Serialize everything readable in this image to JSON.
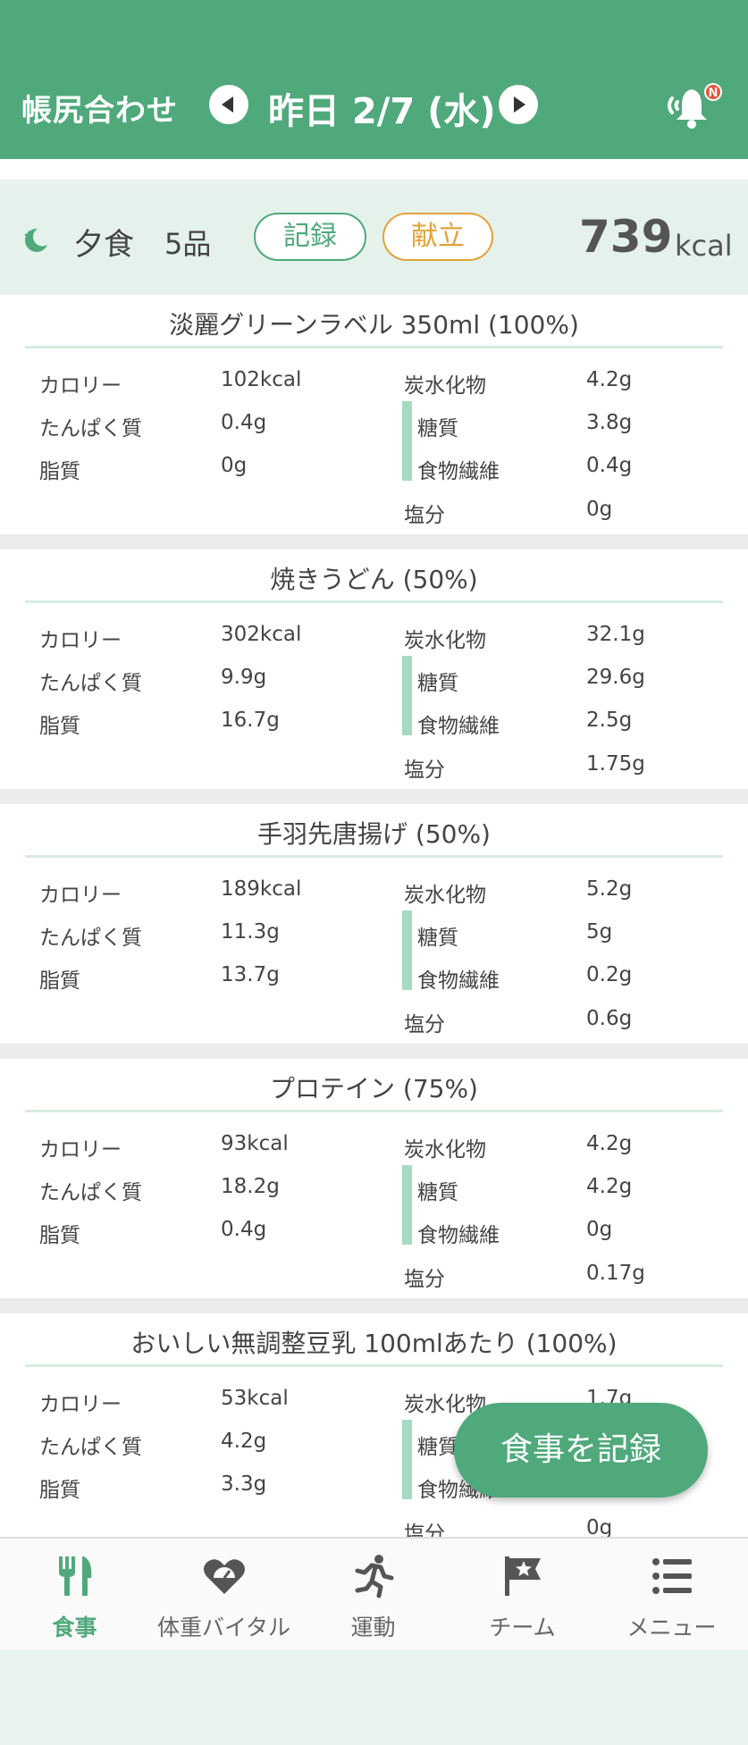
{
  "header": {
    "app_title": "帳尻合わせ",
    "date_label": "昨日 2/7 (水)",
    "notification_badge": "N"
  },
  "meal": {
    "name": "夕食",
    "count": "5品",
    "record_label": "記録",
    "menu_label": "献立",
    "total_value": "739",
    "total_unit": "kcal"
  },
  "labels": {
    "calorie": "カロリー",
    "protein": "たんぱく質",
    "fat": "脂質",
    "carb": "炭水化物",
    "sugar": "糖質",
    "fiber": "食物繊維",
    "salt": "塩分"
  },
  "foods": [
    {
      "title": "淡麗グリーンラベル 350ml (100%)",
      "calorie": "102kcal",
      "protein": "0.4g",
      "fat": "0g",
      "carb": "4.2g",
      "sugar": "3.8g",
      "fiber": "0.4g",
      "salt": "0g"
    },
    {
      "title": "焼きうどん (50%)",
      "calorie": "302kcal",
      "protein": "9.9g",
      "fat": "16.7g",
      "carb": "32.1g",
      "sugar": "29.6g",
      "fiber": "2.5g",
      "salt": "1.75g"
    },
    {
      "title": "手羽先唐揚げ (50%)",
      "calorie": "189kcal",
      "protein": "11.3g",
      "fat": "13.7g",
      "carb": "5.2g",
      "sugar": "5g",
      "fiber": "0.2g",
      "salt": "0.6g"
    },
    {
      "title": "プロテイン (75%)",
      "calorie": "93kcal",
      "protein": "18.2g",
      "fat": "0.4g",
      "carb": "4.2g",
      "sugar": "4.2g",
      "fiber": "0g",
      "salt": "0.17g"
    },
    {
      "title": "おいしい無調整豆乳 100mlあたり (100%)",
      "calorie": "53kcal",
      "protein": "4.2g",
      "fat": "3.3g",
      "carb": "1.7g",
      "sugar": "",
      "fiber": "",
      "salt": "0g"
    }
  ],
  "fab_label": "食事を記録",
  "tabs": [
    {
      "label": "食事",
      "icon": "fork-knife-icon",
      "active": true
    },
    {
      "label": "体重バイタル",
      "icon": "heart-scale-icon",
      "active": false
    },
    {
      "label": "運動",
      "icon": "running-icon",
      "active": false
    },
    {
      "label": "チーム",
      "icon": "flag-star-icon",
      "active": false
    },
    {
      "label": "メニュー",
      "icon": "menu-list-icon",
      "active": false
    }
  ],
  "colors": {
    "brand_green": "#4fa97b",
    "menu_orange": "#e3a23a",
    "sub_bar": "#a6dbc2"
  }
}
